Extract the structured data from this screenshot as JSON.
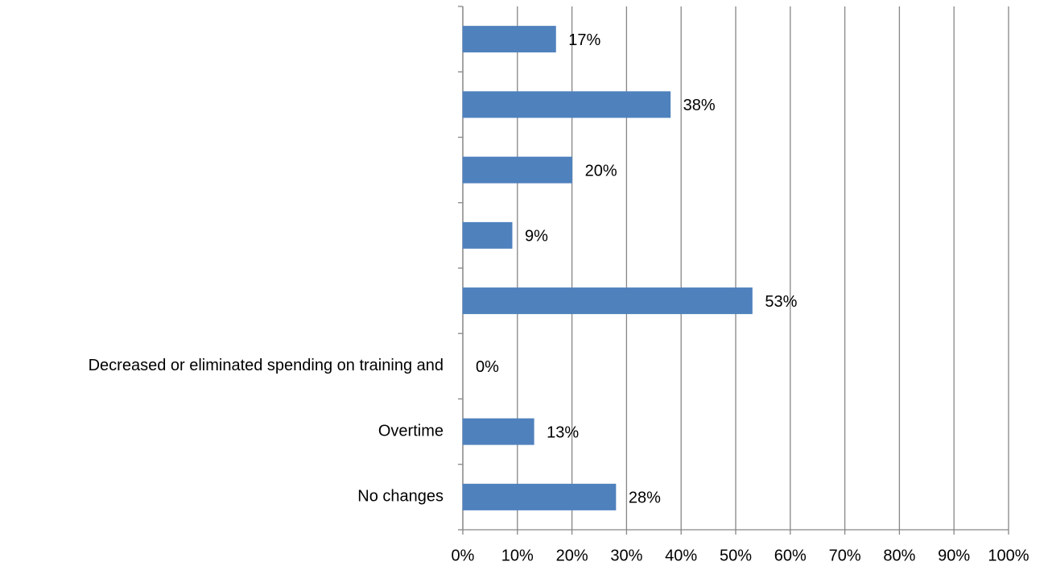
{
  "chart_data": {
    "type": "hbar",
    "categories": [
      null,
      null,
      null,
      null,
      null,
      "Decreased or eliminated spending on training and",
      "Overtime",
      "No changes"
    ],
    "values": [
      17,
      38,
      20,
      9,
      53,
      0,
      13,
      28
    ],
    "value_labels": [
      "17%",
      "38%",
      "20%",
      "9%",
      "53%",
      "0%",
      "13%",
      "28%"
    ],
    "color": "#4f81bd",
    "xlim": [
      0,
      100
    ],
    "xticks": [
      {
        "value": 0,
        "label": "0%"
      },
      {
        "value": 10,
        "label": "10%"
      },
      {
        "value": 20,
        "label": "20%"
      },
      {
        "value": 30,
        "label": "30%"
      },
      {
        "value": 40,
        "label": "40%"
      },
      {
        "value": 50,
        "label": "50%"
      },
      {
        "value": 60,
        "label": "60%"
      },
      {
        "value": 70,
        "label": "70%"
      },
      {
        "value": 80,
        "label": "80%"
      },
      {
        "value": 90,
        "label": "90%"
      },
      {
        "value": 100,
        "label": "100%"
      }
    ],
    "grid": true
  }
}
